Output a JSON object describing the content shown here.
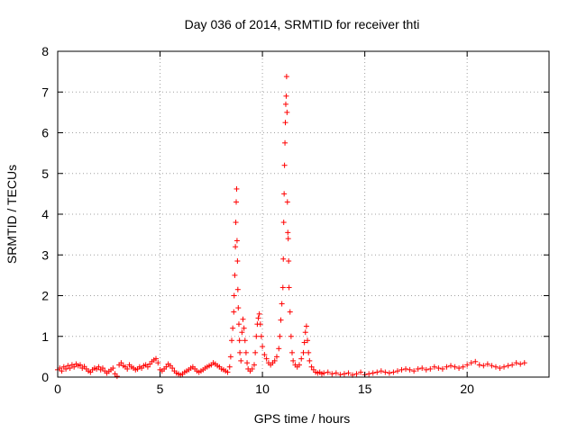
{
  "chart_data": {
    "type": "scatter",
    "title": "Day 036 of 2014, SRMTID for receiver thti",
    "xlabel": "GPS time / hours",
    "ylabel": "SRMTID / TECUs",
    "xlim": [
      0,
      24
    ],
    "ylim": [
      0,
      8
    ],
    "xticks": [
      0,
      5,
      10,
      15,
      20
    ],
    "yticks": [
      0,
      1,
      2,
      3,
      4,
      5,
      6,
      7,
      8
    ],
    "grid": true,
    "marker": "+",
    "color": "#ff0000",
    "series": [
      {
        "name": "SRMTID",
        "points": [
          [
            0.0,
            0.18
          ],
          [
            0.1,
            0.22
          ],
          [
            0.2,
            0.15
          ],
          [
            0.3,
            0.25
          ],
          [
            0.4,
            0.2
          ],
          [
            0.5,
            0.28
          ],
          [
            0.6,
            0.22
          ],
          [
            0.7,
            0.3
          ],
          [
            0.8,
            0.25
          ],
          [
            0.9,
            0.32
          ],
          [
            1.0,
            0.28
          ],
          [
            1.1,
            0.3
          ],
          [
            1.2,
            0.22
          ],
          [
            1.3,
            0.26
          ],
          [
            1.4,
            0.2
          ],
          [
            1.5,
            0.15
          ],
          [
            1.6,
            0.12
          ],
          [
            1.7,
            0.18
          ],
          [
            1.8,
            0.22
          ],
          [
            1.9,
            0.2
          ],
          [
            2.0,
            0.25
          ],
          [
            2.1,
            0.18
          ],
          [
            2.2,
            0.22
          ],
          [
            2.3,
            0.15
          ],
          [
            2.4,
            0.1
          ],
          [
            2.5,
            0.14
          ],
          [
            2.6,
            0.18
          ],
          [
            2.7,
            0.22
          ],
          [
            2.8,
            0.08
          ],
          [
            2.9,
            0.02
          ],
          [
            3.0,
            0.3
          ],
          [
            3.1,
            0.35
          ],
          [
            3.2,
            0.28
          ],
          [
            3.3,
            0.25
          ],
          [
            3.4,
            0.2
          ],
          [
            3.5,
            0.3
          ],
          [
            3.6,
            0.25
          ],
          [
            3.7,
            0.22
          ],
          [
            3.8,
            0.18
          ],
          [
            3.9,
            0.2
          ],
          [
            4.0,
            0.25
          ],
          [
            4.1,
            0.22
          ],
          [
            4.2,
            0.28
          ],
          [
            4.3,
            0.3
          ],
          [
            4.4,
            0.25
          ],
          [
            4.5,
            0.32
          ],
          [
            4.6,
            0.38
          ],
          [
            4.7,
            0.42
          ],
          [
            4.8,
            0.45
          ],
          [
            4.9,
            0.35
          ],
          [
            5.0,
            0.18
          ],
          [
            5.1,
            0.15
          ],
          [
            5.2,
            0.2
          ],
          [
            5.3,
            0.25
          ],
          [
            5.4,
            0.32
          ],
          [
            5.5,
            0.28
          ],
          [
            5.6,
            0.22
          ],
          [
            5.7,
            0.15
          ],
          [
            5.8,
            0.1
          ],
          [
            5.9,
            0.08
          ],
          [
            6.0,
            0.05
          ],
          [
            6.1,
            0.08
          ],
          [
            6.2,
            0.12
          ],
          [
            6.3,
            0.15
          ],
          [
            6.4,
            0.18
          ],
          [
            6.5,
            0.22
          ],
          [
            6.6,
            0.25
          ],
          [
            6.7,
            0.2
          ],
          [
            6.8,
            0.15
          ],
          [
            6.9,
            0.12
          ],
          [
            7.0,
            0.15
          ],
          [
            7.1,
            0.18
          ],
          [
            7.2,
            0.22
          ],
          [
            7.3,
            0.25
          ],
          [
            7.4,
            0.28
          ],
          [
            7.5,
            0.3
          ],
          [
            7.6,
            0.35
          ],
          [
            7.7,
            0.32
          ],
          [
            7.8,
            0.28
          ],
          [
            7.9,
            0.25
          ],
          [
            8.0,
            0.2
          ],
          [
            8.1,
            0.18
          ],
          [
            8.2,
            0.15
          ],
          [
            8.3,
            0.12
          ],
          [
            8.4,
            0.25
          ],
          [
            8.45,
            0.5
          ],
          [
            8.5,
            0.9
          ],
          [
            8.55,
            1.2
          ],
          [
            8.6,
            1.6
          ],
          [
            8.62,
            2.0
          ],
          [
            8.65,
            2.5
          ],
          [
            8.68,
            3.2
          ],
          [
            8.7,
            3.8
          ],
          [
            8.72,
            4.3
          ],
          [
            8.74,
            4.62
          ],
          [
            8.76,
            3.35
          ],
          [
            8.78,
            2.85
          ],
          [
            8.8,
            2.15
          ],
          [
            8.82,
            1.7
          ],
          [
            8.85,
            1.3
          ],
          [
            8.88,
            0.9
          ],
          [
            8.9,
            0.6
          ],
          [
            8.95,
            0.4
          ],
          [
            9.0,
            1.1
          ],
          [
            9.05,
            1.42
          ],
          [
            9.1,
            1.2
          ],
          [
            9.15,
            0.9
          ],
          [
            9.2,
            0.6
          ],
          [
            9.25,
            0.35
          ],
          [
            9.3,
            0.2
          ],
          [
            9.4,
            0.15
          ],
          [
            9.5,
            0.2
          ],
          [
            9.6,
            0.3
          ],
          [
            9.65,
            0.6
          ],
          [
            9.7,
            1.0
          ],
          [
            9.75,
            1.3
          ],
          [
            9.8,
            1.45
          ],
          [
            9.85,
            1.55
          ],
          [
            9.9,
            1.3
          ],
          [
            9.95,
            1.0
          ],
          [
            10.0,
            0.75
          ],
          [
            10.1,
            0.55
          ],
          [
            10.2,
            0.45
          ],
          [
            10.3,
            0.35
          ],
          [
            10.4,
            0.3
          ],
          [
            10.5,
            0.35
          ],
          [
            10.6,
            0.4
          ],
          [
            10.7,
            0.5
          ],
          [
            10.8,
            0.7
          ],
          [
            10.85,
            1.0
          ],
          [
            10.9,
            1.4
          ],
          [
            10.95,
            1.8
          ],
          [
            11.0,
            2.2
          ],
          [
            11.02,
            2.9
          ],
          [
            11.04,
            3.8
          ],
          [
            11.06,
            4.5
          ],
          [
            11.08,
            5.2
          ],
          [
            11.1,
            5.75
          ],
          [
            11.12,
            6.25
          ],
          [
            11.14,
            6.7
          ],
          [
            11.16,
            6.9
          ],
          [
            11.18,
            7.38
          ],
          [
            11.2,
            6.5
          ],
          [
            11.22,
            4.3
          ],
          [
            11.24,
            3.55
          ],
          [
            11.26,
            3.4
          ],
          [
            11.28,
            2.85
          ],
          [
            11.3,
            2.2
          ],
          [
            11.35,
            1.6
          ],
          [
            11.4,
            1.0
          ],
          [
            11.45,
            0.6
          ],
          [
            11.5,
            0.4
          ],
          [
            11.6,
            0.3
          ],
          [
            11.7,
            0.25
          ],
          [
            11.8,
            0.3
          ],
          [
            11.9,
            0.45
          ],
          [
            12.0,
            0.6
          ],
          [
            12.05,
            0.85
          ],
          [
            12.1,
            1.1
          ],
          [
            12.15,
            1.25
          ],
          [
            12.2,
            0.9
          ],
          [
            12.25,
            0.6
          ],
          [
            12.3,
            0.4
          ],
          [
            12.4,
            0.25
          ],
          [
            12.5,
            0.18
          ],
          [
            12.6,
            0.12
          ],
          [
            12.7,
            0.1
          ],
          [
            12.8,
            0.12
          ],
          [
            12.9,
            0.08
          ],
          [
            13.0,
            0.1
          ],
          [
            13.2,
            0.12
          ],
          [
            13.4,
            0.08
          ],
          [
            13.6,
            0.1
          ],
          [
            13.8,
            0.06
          ],
          [
            14.0,
            0.08
          ],
          [
            14.2,
            0.1
          ],
          [
            14.4,
            0.05
          ],
          [
            14.6,
            0.08
          ],
          [
            14.8,
            0.12
          ],
          [
            15.0,
            0.06
          ],
          [
            15.2,
            0.08
          ],
          [
            15.4,
            0.1
          ],
          [
            15.6,
            0.12
          ],
          [
            15.8,
            0.15
          ],
          [
            16.0,
            0.12
          ],
          [
            16.2,
            0.1
          ],
          [
            16.4,
            0.12
          ],
          [
            16.6,
            0.15
          ],
          [
            16.8,
            0.18
          ],
          [
            17.0,
            0.2
          ],
          [
            17.2,
            0.18
          ],
          [
            17.4,
            0.15
          ],
          [
            17.6,
            0.2
          ],
          [
            17.8,
            0.22
          ],
          [
            18.0,
            0.18
          ],
          [
            18.2,
            0.2
          ],
          [
            18.4,
            0.25
          ],
          [
            18.6,
            0.22
          ],
          [
            18.8,
            0.2
          ],
          [
            19.0,
            0.25
          ],
          [
            19.2,
            0.28
          ],
          [
            19.4,
            0.25
          ],
          [
            19.6,
            0.22
          ],
          [
            19.8,
            0.25
          ],
          [
            20.0,
            0.3
          ],
          [
            20.2,
            0.35
          ],
          [
            20.4,
            0.38
          ],
          [
            20.6,
            0.3
          ],
          [
            20.8,
            0.28
          ],
          [
            21.0,
            0.32
          ],
          [
            21.2,
            0.28
          ],
          [
            21.4,
            0.25
          ],
          [
            21.6,
            0.22
          ],
          [
            21.8,
            0.25
          ],
          [
            22.0,
            0.28
          ],
          [
            22.2,
            0.3
          ],
          [
            22.4,
            0.35
          ],
          [
            22.6,
            0.32
          ],
          [
            22.8,
            0.35
          ]
        ]
      }
    ]
  }
}
